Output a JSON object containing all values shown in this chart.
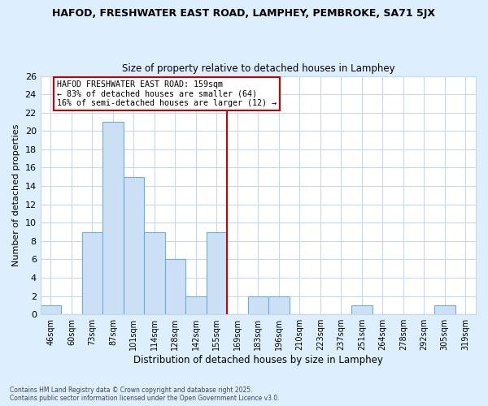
{
  "title1": "HAFOD, FRESHWATER EAST ROAD, LAMPHEY, PEMBROKE, SA71 5JX",
  "title2": "Size of property relative to detached houses in Lamphey",
  "xlabel": "Distribution of detached houses by size in Lamphey",
  "ylabel": "Number of detached properties",
  "bin_labels": [
    "46sqm",
    "60sqm",
    "73sqm",
    "87sqm",
    "101sqm",
    "114sqm",
    "128sqm",
    "142sqm",
    "155sqm",
    "169sqm",
    "183sqm",
    "196sqm",
    "210sqm",
    "223sqm",
    "237sqm",
    "251sqm",
    "264sqm",
    "278sqm",
    "292sqm",
    "305sqm",
    "319sqm"
  ],
  "bar_heights": [
    1,
    0,
    9,
    21,
    15,
    9,
    6,
    2,
    9,
    0,
    2,
    2,
    0,
    0,
    0,
    1,
    0,
    0,
    0,
    1,
    0
  ],
  "bar_color": "#cce0f5",
  "bar_edge_color": "#6baed6",
  "grid_color": "#c8d8e8",
  "background_color": "#ddeeff",
  "plot_bg_color": "#ffffff",
  "vline_x": 8.5,
  "vline_color": "#cc0000",
  "ylim": [
    0,
    26
  ],
  "yticks": [
    0,
    2,
    4,
    6,
    8,
    10,
    12,
    14,
    16,
    18,
    20,
    22,
    24,
    26
  ],
  "annotation_title": "HAFOD FRESHWATER EAST ROAD: 159sqm",
  "annotation_line1": "← 83% of detached houses are smaller (64)",
  "annotation_line2": "16% of semi-detached houses are larger (12) →",
  "footer1": "Contains HM Land Registry data © Crown copyright and database right 2025.",
  "footer2": "Contains public sector information licensed under the Open Government Licence v3.0."
}
